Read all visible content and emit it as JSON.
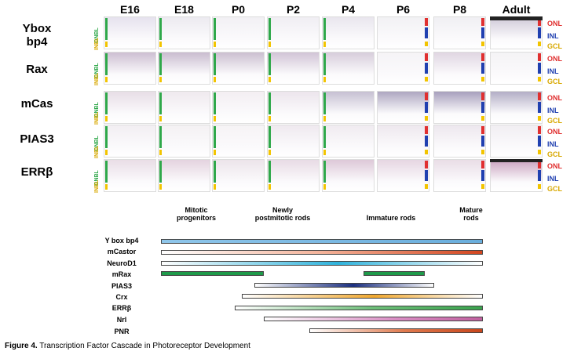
{
  "stages": [
    "E16",
    "E18",
    "P0",
    "P2",
    "P4",
    "P6",
    "P8",
    "Adult"
  ],
  "genes": [
    {
      "line1": "Ybox",
      "line2": "bp4"
    },
    {
      "line1": "Rax",
      "line2": ""
    },
    {
      "line1": "mCas",
      "line2": ""
    },
    {
      "line1": "PIAS3",
      "line2": ""
    },
    {
      "line1": "ERRβ",
      "line2": ""
    }
  ],
  "layer_labels": {
    "onl": "ONL",
    "inl": "INL",
    "gcl": "GCL",
    "onbl": "ONBL",
    "inbl": "INBL"
  },
  "phases": [
    {
      "line1": "Mitotic",
      "line2": "progenitors"
    },
    {
      "line1": "Newly",
      "line2": "postmitotic rods"
    },
    {
      "line1": "Immature rods",
      "line2": ""
    },
    {
      "line1": "Mature",
      "line2": "rods"
    }
  ],
  "factors": [
    {
      "name": "Y box bp4",
      "start": 0.0,
      "end": 1.0,
      "style": "solid-blue"
    },
    {
      "name": "mCastor",
      "start": 0.0,
      "end": 1.0,
      "style": "fade-red"
    },
    {
      "name": "NeuroD1",
      "start": 0.0,
      "end": 1.0,
      "style": "fade-cyan"
    },
    {
      "name": "mRax",
      "start": 0.0,
      "end": 0.32,
      "style": "solid-green"
    },
    {
      "name": "mRax-late",
      "start": 0.63,
      "end": 0.82,
      "style": "solid-green"
    },
    {
      "name": "PIAS3",
      "start": 0.29,
      "end": 0.85,
      "style": "fade-navy"
    },
    {
      "name": "Crx",
      "start": 0.25,
      "end": 1.0,
      "style": "fade-orange"
    },
    {
      "name": "ERRβ",
      "start": 0.23,
      "end": 1.0,
      "style": "fade-green"
    },
    {
      "name": "Nrl",
      "start": 0.32,
      "end": 1.0,
      "style": "fade-pink"
    },
    {
      "name": "PNR",
      "start": 0.46,
      "end": 1.0,
      "style": "fade-rust"
    }
  ],
  "factor_labels": [
    "Y box bp4",
    "mCastor",
    "NeuroD1",
    "mRax",
    "PIAS3",
    "Crx",
    "ERRβ",
    "Nrl",
    "PNR"
  ],
  "caption": {
    "bold": "Figure 4.",
    "text": " Transcription Factor Cascade in Photoreceptor Development"
  }
}
